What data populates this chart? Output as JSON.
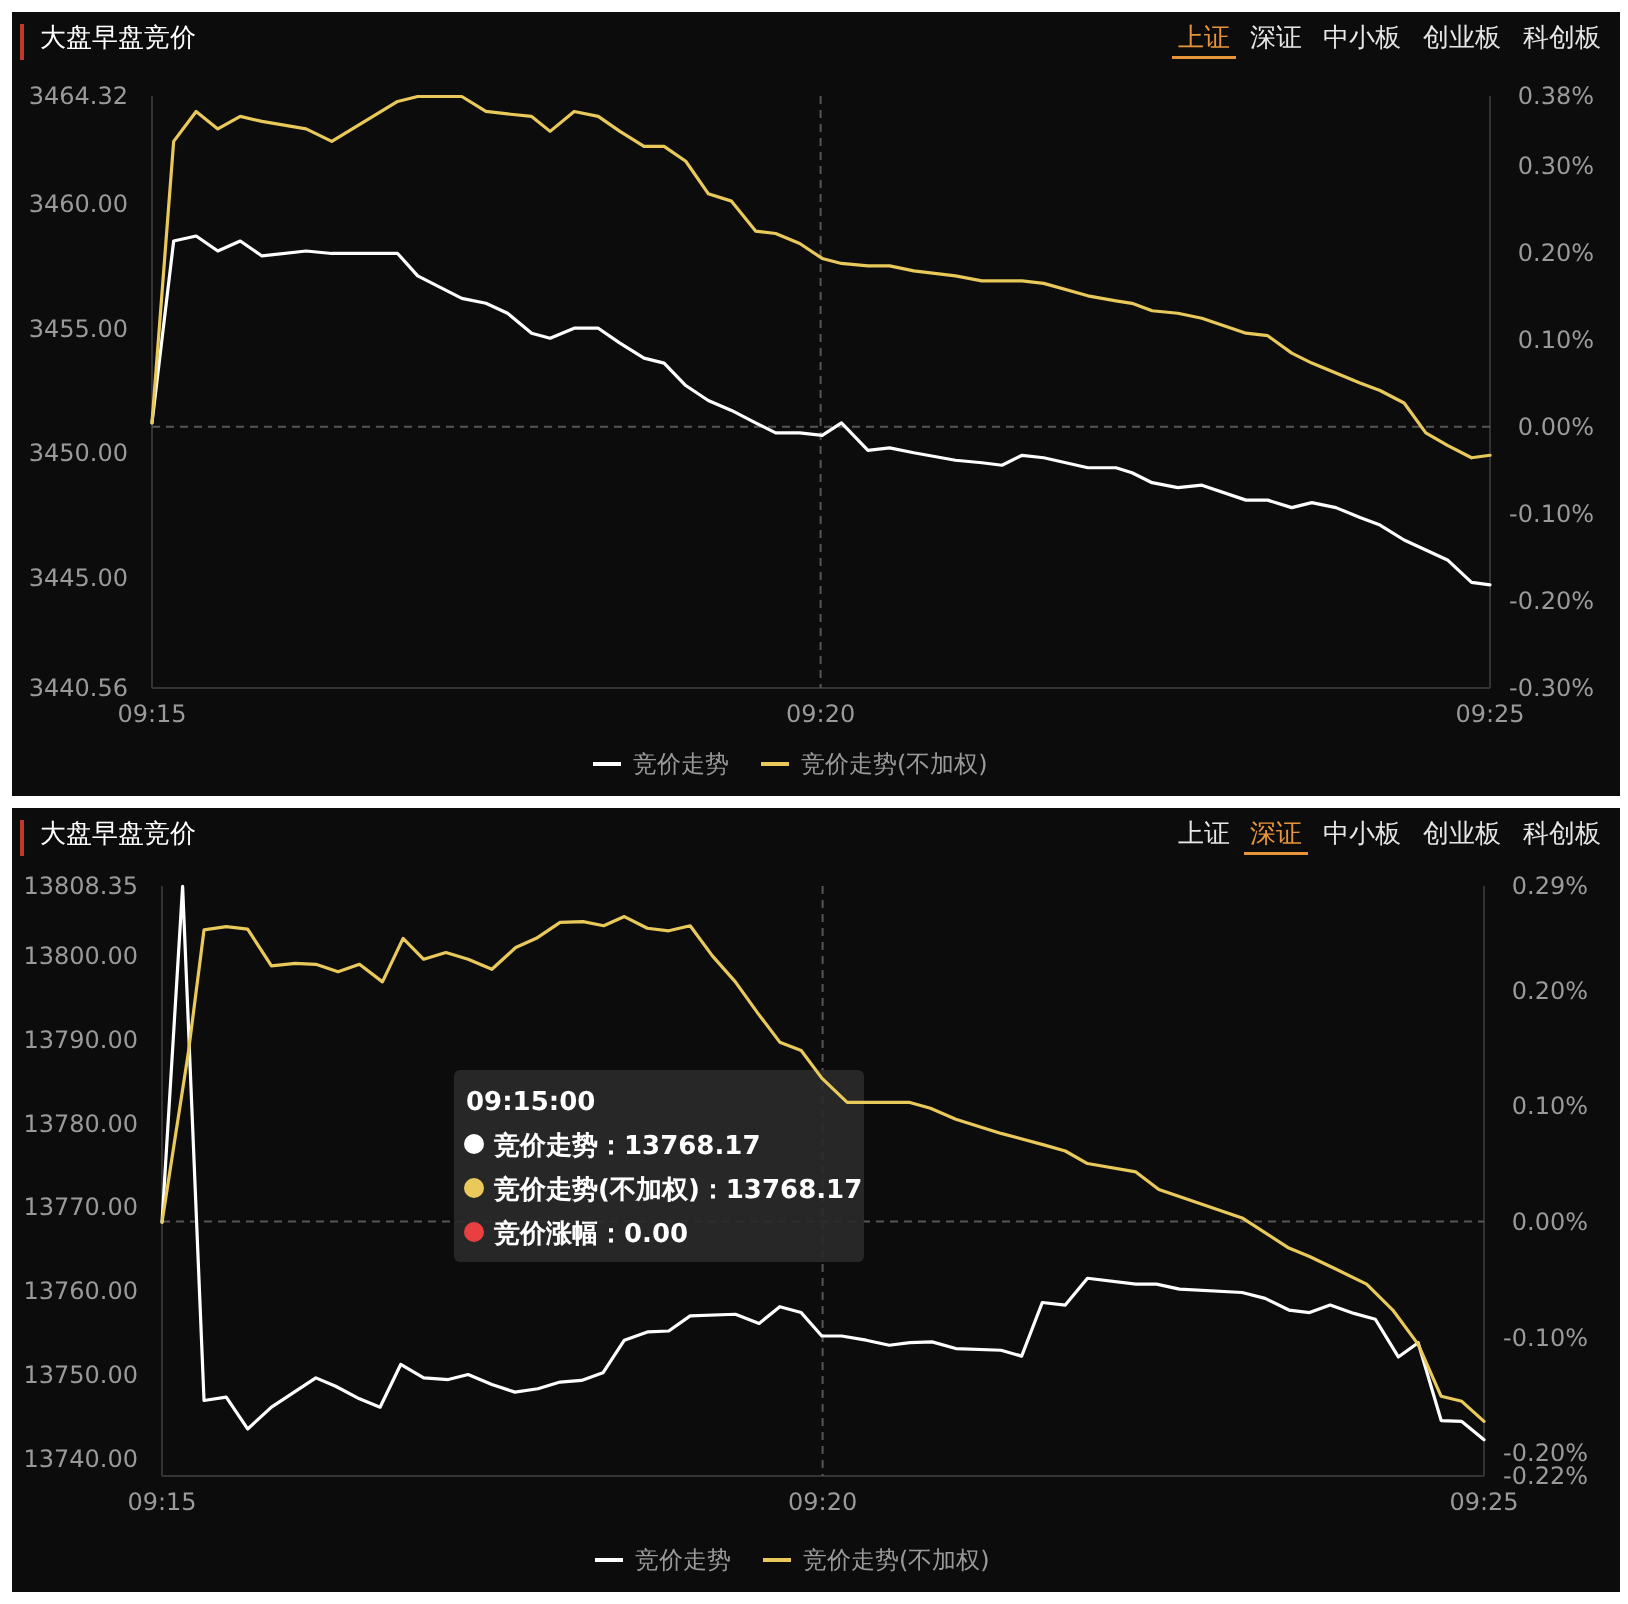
{
  "chart_data": [
    {
      "type": "line",
      "title": "大盘早盘竞价",
      "annotations": [
        "上证",
        "深证",
        "中小板",
        "创业板",
        "科创板"
      ],
      "x": [
        9.25,
        9.2527,
        9.2555,
        9.2582,
        9.261,
        9.2637,
        9.2692,
        9.2724,
        9.2806,
        9.2831,
        9.2886,
        9.2916,
        9.2943,
        9.2973,
        9.2996,
        9.3026,
        9.3056,
        9.3083,
        9.3113,
        9.3138,
        9.3165,
        9.3193,
        9.3222,
        9.3252,
        9.3277,
        9.3307,
        9.3335,
        9.3359,
        9.3392,
        9.3419,
        9.3449,
        9.3501,
        9.3534,
        9.3559,
        9.3584,
        9.3611,
        9.3666,
        9.3701,
        9.3721,
        9.3746,
        9.3778,
        9.3808,
        9.3863,
        9.389,
        9.392,
        9.3945,
        9.3975,
        9.4005,
        9.403,
        9.406,
        9.4087,
        9.4114,
        9.4144,
        9.4167
      ],
      "series": [
        {
          "name": "竞价走势",
          "color": "#ffffff",
          "values": [
            3451.2,
            3458.5,
            3458.7,
            3458.1,
            3458.5,
            3457.9,
            3458.1,
            3458.0,
            3458.0,
            3457.1,
            3456.2,
            3456.0,
            3455.6,
            3454.8,
            3454.6,
            3455.0,
            3455.0,
            3454.4,
            3453.8,
            3453.6,
            3452.7,
            3452.1,
            3451.7,
            3451.2,
            3450.8,
            3450.8,
            3450.7,
            3451.2,
            3450.1,
            3450.2,
            3450.0,
            3449.7,
            3449.6,
            3449.5,
            3449.9,
            3449.8,
            3449.4,
            3449.4,
            3449.2,
            3448.8,
            3448.6,
            3448.7,
            3448.1,
            3448.1,
            3447.8,
            3448.0,
            3447.8,
            3447.4,
            3447.1,
            3446.5,
            3446.1,
            3445.7,
            3444.8,
            3444.7
          ]
        },
        {
          "name": "竞价走势(不加权)",
          "color": "#e8c95a",
          "values": [
            3451.2,
            3462.5,
            3463.7,
            3463.0,
            3463.5,
            3463.3,
            3463.0,
            3462.5,
            3464.1,
            3464.3,
            3464.3,
            3463.7,
            3463.6,
            3463.5,
            3462.9,
            3463.7,
            3463.5,
            3462.9,
            3462.3,
            3462.3,
            3461.7,
            3460.4,
            3460.1,
            3458.9,
            3458.8,
            3458.4,
            3457.8,
            3457.6,
            3457.5,
            3457.5,
            3457.3,
            3457.1,
            3456.9,
            3456.9,
            3456.9,
            3456.8,
            3456.3,
            3456.1,
            3456.0,
            3455.7,
            3455.6,
            3455.4,
            3454.8,
            3454.7,
            3454.0,
            3453.6,
            3453.2,
            3452.8,
            3452.5,
            3452.0,
            3450.8,
            3450.3,
            3449.8,
            3449.9
          ]
        }
      ],
      "xlim": [
        9.25,
        9.4167
      ],
      "xticks": [
        {
          "value": 9.25,
          "label": "09:15"
        },
        {
          "value": 9.3333,
          "label": "09:20"
        },
        {
          "value": 9.4167,
          "label": "09:25"
        }
      ],
      "ylim": [
        3440.56,
        3464.32
      ],
      "yticks": [
        {
          "value": 3440.56,
          "label": "3440.56"
        },
        {
          "value": 3445,
          "label": "3445.00"
        },
        {
          "value": 3450,
          "label": "3450.00"
        },
        {
          "value": 3455,
          "label": "3455.00"
        },
        {
          "value": 3460,
          "label": "3460.00"
        },
        {
          "value": 3464.32,
          "label": "3464.32"
        }
      ],
      "y2lim": [
        -0.3,
        0.38
      ],
      "y2ticks": [
        {
          "value": -0.3,
          "label": "-0.30%"
        },
        {
          "value": -0.2,
          "label": "-0.20%"
        },
        {
          "value": -0.1,
          "label": "-0.10%"
        },
        {
          "value": 0,
          "label": "0.00%"
        },
        {
          "value": 0.1,
          "label": "0.10%"
        },
        {
          "value": 0.2,
          "label": "0.20%"
        },
        {
          "value": 0.3,
          "label": "0.30%"
        },
        {
          "value": 0.38,
          "label": "0.38%"
        }
      ],
      "ref_lines": [
        {
          "axis": "y2",
          "value": 0,
          "line_style": "dashed"
        },
        {
          "axis": "x",
          "value": 9.3333,
          "line_style": "dashed"
        }
      ],
      "legend": "bottom"
    },
    {
      "type": "line",
      "title": "大盘早盘竞价",
      "annotations": [
        "上证",
        "深证",
        "中小板",
        "创业板",
        "科创板",
        "09:15:00\n竞价走势：13768.17\n竞价走势(不加权)：13768.17\n竞价涨幅：0.00"
      ],
      "series": [
        {
          "name": "竞价走势",
          "color": "#ffffff",
          "x": [
            9.25,
            9.2526,
            9.2553,
            9.2581,
            9.2608,
            9.2638,
            9.2694,
            9.2719,
            9.2749,
            9.2775,
            9.2801,
            9.283,
            9.2861,
            9.2886,
            9.2916,
            9.2945,
            9.2974,
            9.3002,
            9.3029,
            9.3056,
            9.3083,
            9.3113,
            9.3139,
            9.3166,
            9.3223,
            9.3253,
            9.3279,
            9.3306,
            9.3332,
            9.3357,
            9.3388,
            9.3417,
            9.3443,
            9.3471,
            9.3501,
            9.3558,
            9.3584,
            9.361,
            9.3639,
            9.3667,
            9.3728,
            9.3754,
            9.3783,
            9.3862,
            9.3891,
            9.3921,
            9.3947,
            9.3973,
            9.4003,
            9.403,
            9.4059,
            9.4084,
            9.4113,
            9.4139,
            9.4167
          ],
          "values": [
            13768.2,
            13808.3,
            13746.9,
            13747.3,
            13743.5,
            13746.1,
            13749.6,
            13748.6,
            13747.1,
            13746.1,
            13751.2,
            13749.6,
            13749.4,
            13750.0,
            13748.8,
            13747.9,
            13748.3,
            13749.1,
            13749.3,
            13750.2,
            13754.1,
            13755.1,
            13755.2,
            13757.0,
            13757.2,
            13756.1,
            13758.1,
            13757.4,
            13754.6,
            13754.6,
            13754.1,
            13753.5,
            13753.8,
            13753.9,
            13753.1,
            13752.9,
            13752.2,
            13758.6,
            13758.3,
            13761.5,
            13760.8,
            13760.8,
            13760.2,
            13759.8,
            13759.1,
            13757.7,
            13757.4,
            13758.3,
            13757.3,
            13756.6,
            13752.1,
            13753.8,
            13744.5,
            13744.4,
            13742.2
          ]
        },
        {
          "name": "竞价走势(不加权)",
          "color": "#e8c95a",
          "x": [
            9.25,
            9.2533,
            9.2553,
            9.2581,
            9.2608,
            9.2638,
            9.2668,
            9.2694,
            9.2722,
            9.2749,
            9.2778,
            9.2804,
            9.283,
            9.2858,
            9.2886,
            9.2916,
            9.2946,
            9.2972,
            9.3002,
            9.3031,
            9.3057,
            9.3083,
            9.3112,
            9.3139,
            9.3166,
            9.3194,
            9.3223,
            9.3251,
            9.3279,
            9.3306,
            9.3332,
            9.3364,
            9.3443,
            9.3469,
            9.3501,
            9.3558,
            9.3613,
            9.3639,
            9.3667,
            9.3728,
            9.3757,
            9.3862,
            9.3921,
            9.3947,
            9.398,
            9.4019,
            9.4052,
            9.4084,
            9.4113,
            9.4139,
            9.4167
          ],
          "values": [
            13768.2,
            13788.3,
            13803.1,
            13803.5,
            13803.2,
            13798.8,
            13799.1,
            13799.0,
            13798.1,
            13799.0,
            13796.9,
            13802.1,
            13799.6,
            13800.4,
            13799.6,
            13798.4,
            13801.0,
            13802.1,
            13804.0,
            13804.1,
            13803.6,
            13804.7,
            13803.3,
            13803.0,
            13803.6,
            13800.0,
            13796.9,
            13793.2,
            13789.7,
            13788.7,
            13785.4,
            13782.5,
            13782.5,
            13781.8,
            13780.5,
            13778.8,
            13777.4,
            13776.7,
            13775.2,
            13774.2,
            13772.1,
            13768.7,
            13765.1,
            13764.1,
            13762.6,
            13760.8,
            13757.7,
            13753.6,
            13747.4,
            13746.8,
            13744.4
          ]
        }
      ],
      "xlim": [
        9.25,
        9.4167
      ],
      "xticks": [
        {
          "value": 9.25,
          "label": "09:15"
        },
        {
          "value": 9.3333,
          "label": "09:20"
        },
        {
          "value": 9.4167,
          "label": "09:25"
        }
      ],
      "ylim": [
        13737.88,
        13808.35
      ],
      "yticks": [
        {
          "value": 13740,
          "label": "13740.00"
        },
        {
          "value": 13750,
          "label": "13750.00"
        },
        {
          "value": 13760,
          "label": "13760.00"
        },
        {
          "value": 13770,
          "label": "13770.00"
        },
        {
          "value": 13780,
          "label": "13780.00"
        },
        {
          "value": 13790,
          "label": "13790.00"
        },
        {
          "value": 13800,
          "label": "13800.00"
        },
        {
          "value": 13808.35,
          "label": "13808.35"
        }
      ],
      "y2lim": [
        -0.22,
        0.29
      ],
      "y2ticks": [
        {
          "value": -0.22,
          "label": "-0.22%"
        },
        {
          "value": -0.2,
          "label": "-0.20%"
        },
        {
          "value": -0.1,
          "label": "-0.10%"
        },
        {
          "value": 0,
          "label": "0.00%"
        },
        {
          "value": 0.1,
          "label": "0.10%"
        },
        {
          "value": 0.2,
          "label": "0.20%"
        },
        {
          "value": 0.29,
          "label": "0.29%"
        }
      ],
      "ref_lines": [
        {
          "axis": "y2",
          "value": 0,
          "line_style": "dashed"
        },
        {
          "axis": "x",
          "value": 9.3333,
          "line_style": "dashed"
        }
      ],
      "legend": "bottom"
    }
  ]
}
